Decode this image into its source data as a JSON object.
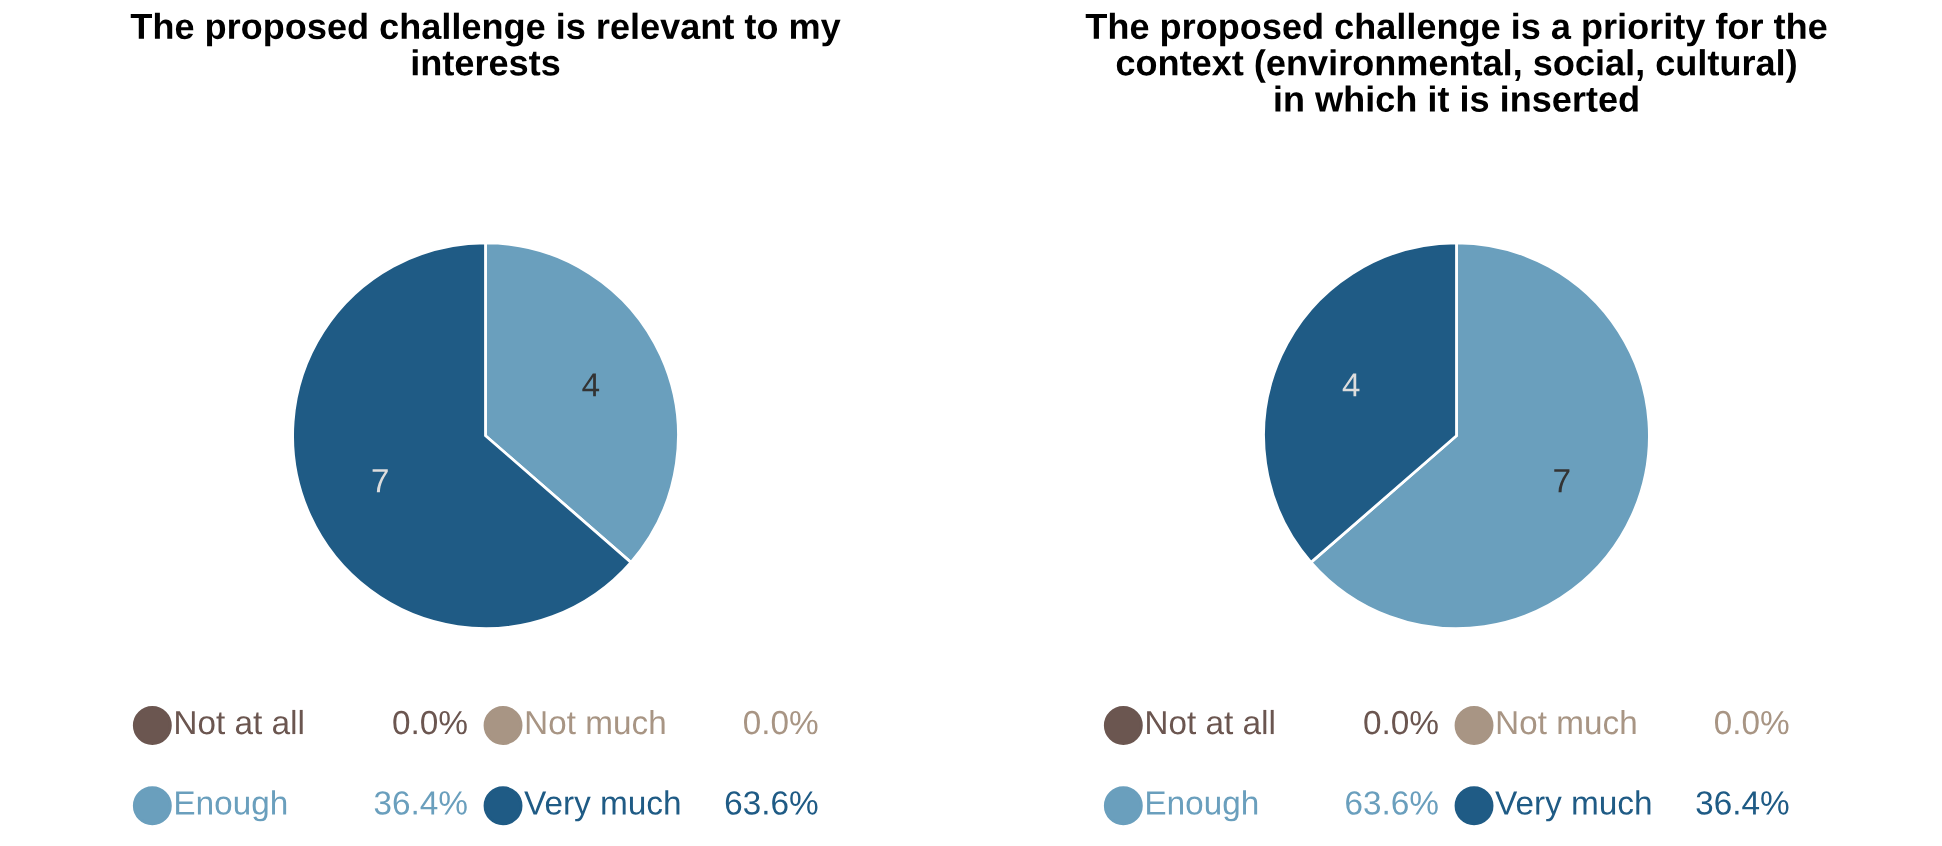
{
  "chart_data": [
    {
      "type": "pie",
      "title": "The proposed challenge is relevant to my\ninterests",
      "categories": [
        "Not at all",
        "Not much",
        "Enough",
        "Very much"
      ],
      "values": [
        0,
        0,
        36.4,
        63.6
      ],
      "colors": [
        "#6b5650",
        "#a89584",
        "#6a9fbd",
        "#1f5b85"
      ],
      "value_labels": [
        "0.0%",
        "0.0%",
        "36.4%",
        "63.6%"
      ],
      "annotations": [
        {
          "text": "4",
          "x": "Enough"
        },
        {
          "text": "7",
          "x": "Very much"
        }
      ],
      "legend": "bottom"
    },
    {
      "type": "pie",
      "title": "The proposed challenge is a priority for the\ncontext (environmental, social, cultural)\nin which it is inserted",
      "categories": [
        "Not at all",
        "Not much",
        "Enough",
        "Very much"
      ],
      "values": [
        0,
        0,
        63.6,
        36.4
      ],
      "colors": [
        "#6b5650",
        "#a89584",
        "#6a9fbd",
        "#1f5b85"
      ],
      "value_labels": [
        "0.0%",
        "0.0%",
        "63.6%",
        "36.4%"
      ],
      "annotations": [
        {
          "text": "7",
          "x": "Enough"
        },
        {
          "text": "4",
          "x": "Very much"
        }
      ],
      "legend": "bottom"
    }
  ]
}
